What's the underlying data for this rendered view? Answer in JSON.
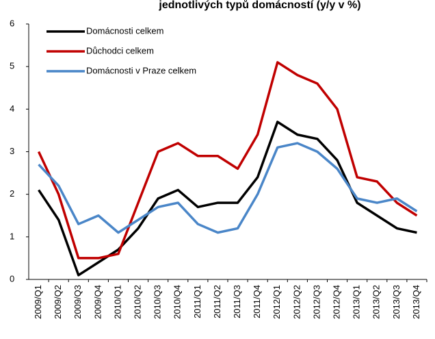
{
  "chart_data": {
    "type": "line",
    "title": "jednotlivých typů domácností (y/y v %)",
    "categories": [
      "2009/Q1",
      "2009/Q2",
      "2009/Q3",
      "2009/Q4",
      "2010/Q1",
      "2010/Q2",
      "2010/Q3",
      "2010/Q4",
      "2011/Q1",
      "2011/Q2",
      "2011/Q3",
      "2011/Q4",
      "2012/Q1",
      "2012/Q2",
      "2012/Q3",
      "2012/Q4",
      "2013/Q1",
      "2013/Q2",
      "2013/Q3",
      "2013/Q4"
    ],
    "series": [
      {
        "name": "Domácnosti celkem",
        "color": "#000000",
        "values": [
          2.1,
          1.4,
          0.1,
          0.4,
          0.7,
          1.2,
          1.9,
          2.1,
          1.7,
          1.8,
          1.8,
          2.4,
          3.7,
          3.4,
          3.3,
          2.8,
          1.8,
          1.5,
          1.2,
          1.1
        ]
      },
      {
        "name": "Důchodci celkem",
        "color": "#c00000",
        "values": [
          3.0,
          2.0,
          0.5,
          0.5,
          0.6,
          1.8,
          3.0,
          3.2,
          2.9,
          2.9,
          2.6,
          3.4,
          5.1,
          4.8,
          4.6,
          4.0,
          2.4,
          2.3,
          1.8,
          1.5
        ]
      },
      {
        "name": "Domácnosti v Praze celkem",
        "color": "#4a86c8",
        "values": [
          2.7,
          2.2,
          1.3,
          1.5,
          1.1,
          1.4,
          1.7,
          1.8,
          1.3,
          1.1,
          1.2,
          2.0,
          3.1,
          3.2,
          3.0,
          2.6,
          1.9,
          1.8,
          1.9,
          1.6
        ]
      }
    ],
    "ylim": [
      0,
      6
    ],
    "yticks": [
      0,
      1,
      2,
      3,
      4,
      5,
      6
    ],
    "grid": false,
    "legend": "top-left"
  }
}
